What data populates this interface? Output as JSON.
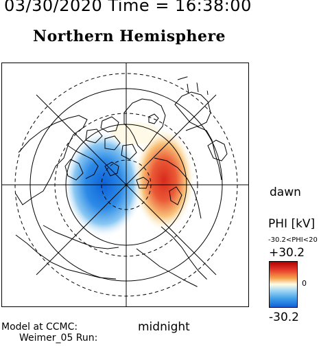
{
  "header": {
    "datetime": "03/30/2020 Time = 16:38:00",
    "hemisphere": "Northern Hemisphere"
  },
  "map": {
    "orientation_labels": {
      "right": "dawn",
      "bottom": "midnight"
    },
    "potential_pattern": {
      "negative_cell_color": "#1e7ce0",
      "positive_cell_color": "#e0402c"
    }
  },
  "colorbar": {
    "title": "PHI [kV]",
    "range_text": "-30.2<PHI<20",
    "max": "+30.2",
    "zero": "0",
    "min": "-30.2"
  },
  "footer": {
    "line1": "Model at CCMC:",
    "line2": "Weimer_05 Run:"
  }
}
